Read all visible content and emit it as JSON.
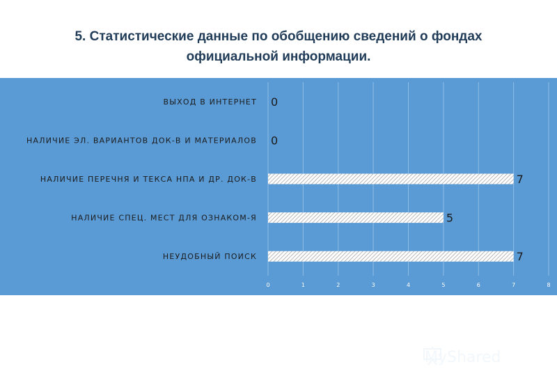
{
  "title": "5. Статистические данные по обобщению сведений о фондах официальной информации.",
  "watermark": {
    "text": "MyShared",
    "icon": "projector-screen-icon"
  },
  "colors": {
    "panel": "#5b9bd5",
    "bar_fill": "#ffffff",
    "bar_hatch": "#9a9a9a",
    "text": "#1a1a1a",
    "title": "#1f3b57"
  },
  "chart_data": {
    "type": "bar",
    "orientation": "horizontal",
    "categories": [
      "ВЫХОД В ИНТЕРНЕТ",
      "НАЛИЧИЕ ЭЛ. ВАРИАНТОВ ДОК-В И МАТЕРИАЛОВ",
      "НАЛИЧИЕ ПЕРЕЧНЯ И ТЕКСА НПА И ДР. ДОК-В",
      "НАЛИЧИЕ СПЕЦ. МЕСТ ДЛЯ ОЗНАКОМ-Я",
      "НЕУДОБНЫЙ ПОИСК"
    ],
    "values": [
      0,
      0,
      7,
      5,
      7
    ],
    "xlim": [
      0,
      8
    ],
    "ticks": [
      "0",
      "1",
      "2",
      "3",
      "4",
      "5",
      "6",
      "7",
      "8"
    ],
    "grid": true,
    "legend": "none",
    "bar_pattern": "diagonal-hatch"
  }
}
